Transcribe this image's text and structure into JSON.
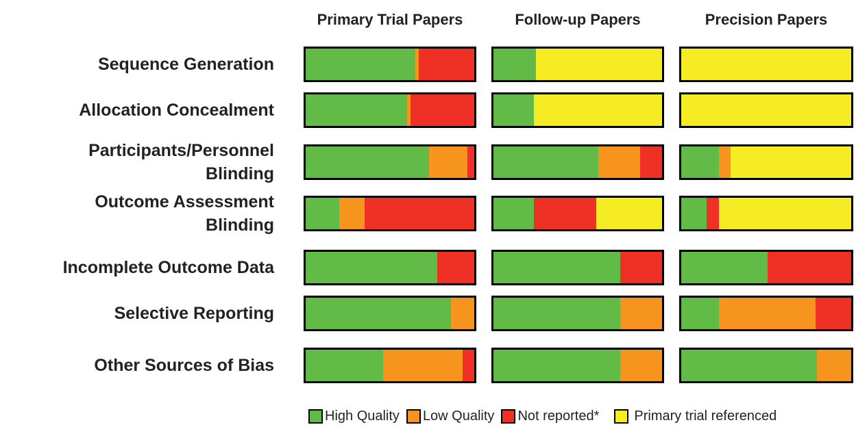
{
  "chart_data": {
    "type": "bar",
    "orientation": "horizontal",
    "stacked": true,
    "categories": [
      "Sequence Generation",
      "Allocation Concealment",
      "Participants/Personnel\nBlinding",
      "Outcome Assessment\nBlinding",
      "Incomplete Outcome Data",
      "Selective Reporting",
      "Other Sources of Bias"
    ],
    "panel_titles": [
      "Primary Trial Papers",
      "Follow-up Papers",
      "Precision Papers"
    ],
    "xlim": [
      0,
      100
    ],
    "series": [
      {
        "name": "High Quality",
        "color": "#62bb46",
        "values": [
          [
            65,
            60,
            73,
            20,
            78,
            86,
            46
          ],
          [
            25,
            24,
            62,
            24,
            75,
            75,
            75
          ],
          [
            0,
            0,
            22,
            15,
            51,
            22,
            80
          ]
        ]
      },
      {
        "name": "Low Quality",
        "color": "#f7941d",
        "values": [
          [
            2,
            2,
            23,
            15,
            0,
            14,
            47
          ],
          [
            0,
            0,
            25,
            0,
            0,
            25,
            25
          ],
          [
            0,
            0,
            7,
            0,
            0,
            57,
            20
          ]
        ]
      },
      {
        "name": "Not reported*",
        "color": "#ee3124",
        "values": [
          [
            33,
            38,
            4,
            65,
            22,
            0,
            7
          ],
          [
            0,
            0,
            13,
            37,
            25,
            0,
            0
          ],
          [
            0,
            0,
            0,
            7,
            49,
            21,
            0
          ]
        ]
      },
      {
        "name": "Primary trial referenced",
        "color": "#f5ec23",
        "values": [
          [
            0,
            0,
            0,
            0,
            0,
            0,
            0
          ],
          [
            75,
            76,
            0,
            39,
            0,
            0,
            0
          ],
          [
            100,
            100,
            71,
            78,
            0,
            0,
            0
          ]
        ]
      }
    ]
  }
}
